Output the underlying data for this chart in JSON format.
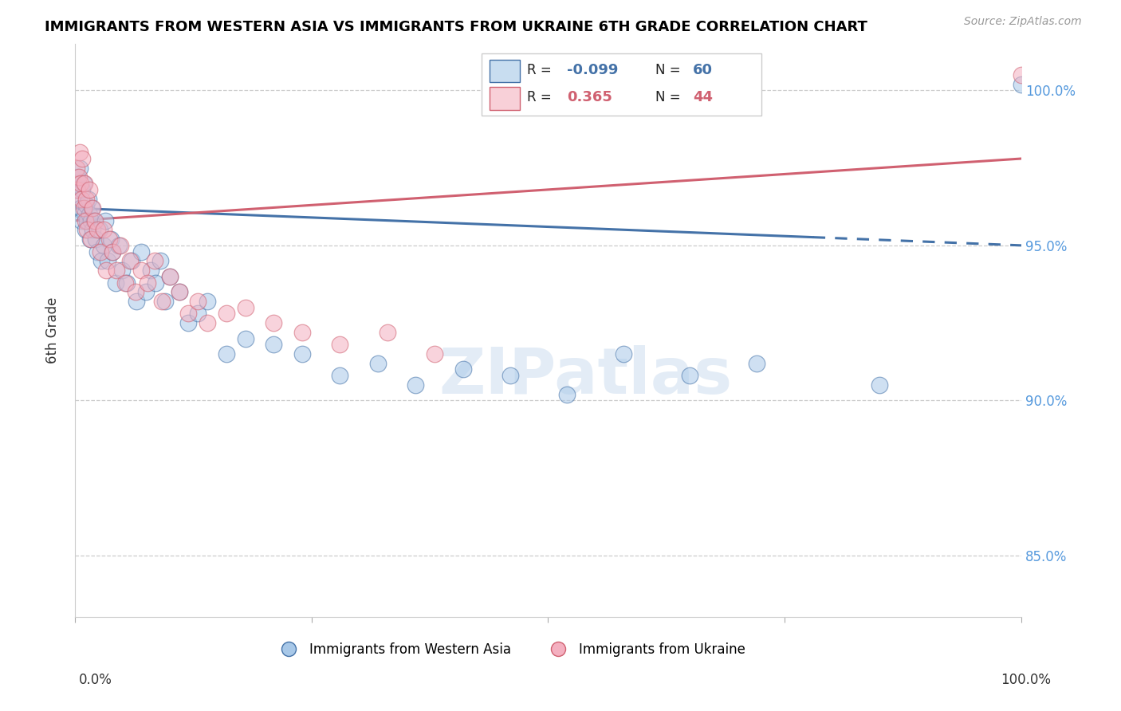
{
  "title": "IMMIGRANTS FROM WESTERN ASIA VS IMMIGRANTS FROM UKRAINE 6TH GRADE CORRELATION CHART",
  "source": "Source: ZipAtlas.com",
  "ylabel": "6th Grade",
  "r_blue": -0.099,
  "n_blue": 60,
  "r_pink": 0.365,
  "n_pink": 44,
  "blue_color": "#a8c8e8",
  "pink_color": "#f4b0c0",
  "blue_line_color": "#4472a8",
  "pink_line_color": "#d06070",
  "legend_box_color_blue": "#c8ddf0",
  "legend_box_color_pink": "#f8d0d8",
  "watermark": "ZIPatlas",
  "ylim_min": 83.0,
  "ylim_max": 101.5,
  "yticks": [
    85.0,
    90.0,
    95.0,
    100.0
  ],
  "blue_x": [
    0.002,
    0.003,
    0.004,
    0.005,
    0.006,
    0.007,
    0.008,
    0.009,
    0.01,
    0.011,
    0.012,
    0.013,
    0.014,
    0.015,
    0.016,
    0.017,
    0.018,
    0.019,
    0.02,
    0.022,
    0.024,
    0.026,
    0.028,
    0.03,
    0.032,
    0.035,
    0.038,
    0.04,
    0.043,
    0.046,
    0.05,
    0.055,
    0.06,
    0.065,
    0.07,
    0.075,
    0.08,
    0.085,
    0.09,
    0.095,
    0.1,
    0.11,
    0.12,
    0.13,
    0.14,
    0.16,
    0.18,
    0.21,
    0.24,
    0.28,
    0.32,
    0.36,
    0.41,
    0.46,
    0.52,
    0.58,
    0.65,
    0.72,
    0.85,
    1.0
  ],
  "blue_y": [
    96.8,
    97.2,
    96.5,
    97.5,
    96.2,
    95.8,
    96.8,
    97.0,
    96.0,
    95.5,
    96.3,
    95.8,
    96.5,
    96.0,
    95.2,
    95.8,
    96.2,
    95.5,
    95.8,
    95.2,
    94.8,
    95.5,
    94.5,
    95.0,
    95.8,
    94.5,
    95.2,
    94.8,
    93.8,
    95.0,
    94.2,
    93.8,
    94.5,
    93.2,
    94.8,
    93.5,
    94.2,
    93.8,
    94.5,
    93.2,
    94.0,
    93.5,
    92.5,
    92.8,
    93.2,
    91.5,
    92.0,
    91.8,
    91.5,
    90.8,
    91.2,
    90.5,
    91.0,
    90.8,
    90.2,
    91.5,
    90.8,
    91.2,
    90.5,
    100.2
  ],
  "pink_x": [
    0.002,
    0.003,
    0.004,
    0.005,
    0.006,
    0.007,
    0.008,
    0.009,
    0.01,
    0.011,
    0.012,
    0.013,
    0.015,
    0.017,
    0.019,
    0.021,
    0.024,
    0.027,
    0.03,
    0.033,
    0.036,
    0.04,
    0.044,
    0.048,
    0.053,
    0.058,
    0.064,
    0.07,
    0.077,
    0.084,
    0.092,
    0.1,
    0.11,
    0.12,
    0.13,
    0.14,
    0.16,
    0.18,
    0.21,
    0.24,
    0.28,
    0.33,
    0.38,
    1.0
  ],
  "pink_y": [
    97.5,
    96.8,
    97.2,
    98.0,
    97.0,
    96.5,
    97.8,
    96.2,
    97.0,
    95.8,
    96.5,
    95.5,
    96.8,
    95.2,
    96.2,
    95.8,
    95.5,
    94.8,
    95.5,
    94.2,
    95.2,
    94.8,
    94.2,
    95.0,
    93.8,
    94.5,
    93.5,
    94.2,
    93.8,
    94.5,
    93.2,
    94.0,
    93.5,
    92.8,
    93.2,
    92.5,
    92.8,
    93.0,
    92.5,
    92.2,
    91.8,
    92.2,
    91.5,
    100.5
  ]
}
